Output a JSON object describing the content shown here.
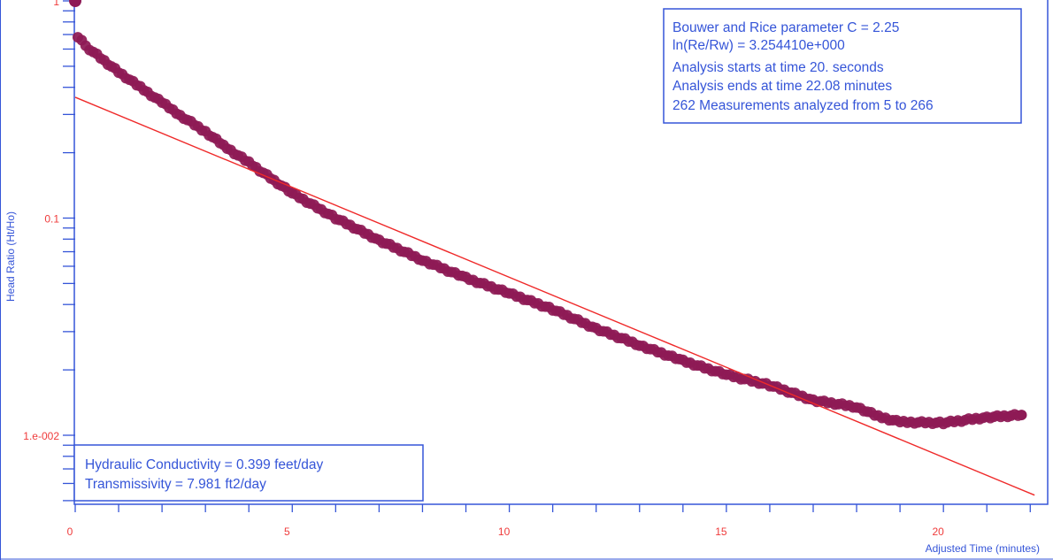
{
  "chart_data": {
    "type": "scatter",
    "xlabel": "Adjusted Time (minutes)",
    "ylabel": "Head Ratio (Ht/Ho)",
    "xlim": [
      0,
      22.3
    ],
    "ylim": [
      0.0045,
      1.0
    ],
    "yscale": "log",
    "grid": false,
    "x_ticks": [
      {
        "value": 0,
        "label": "0"
      },
      {
        "value": 5,
        "label": "5"
      },
      {
        "value": 10,
        "label": "10"
      },
      {
        "value": 15,
        "label": "15"
      },
      {
        "value": 20,
        "label": "20"
      }
    ],
    "y_ticks": [
      {
        "value": 1,
        "label": "1"
      },
      {
        "value": 0.1,
        "label": "0.1"
      },
      {
        "value": 0.01,
        "label": "1.e-002"
      }
    ],
    "colors": {
      "axis": "#3555d8",
      "tick_label": "#ef3b3b",
      "points": "#8e1a55",
      "fit_line": "#ef2a2a",
      "text": "#3555d8"
    },
    "series": [
      {
        "kind": "points",
        "x": [
          0.0,
          0.06,
          0.33,
          0.67,
          1.0,
          1.5,
          2.0,
          2.5,
          3.0,
          3.5,
          4.0,
          5.0,
          6.0,
          7.0,
          8.0,
          9.0,
          10.0,
          11.0,
          12.0,
          13.0,
          14.0,
          15.0,
          16.0,
          17.0,
          18.0,
          18.5,
          19.0,
          20.0,
          21.0,
          21.8
        ],
        "y": [
          1.0,
          0.68,
          0.6,
          0.53,
          0.47,
          0.4,
          0.34,
          0.29,
          0.25,
          0.21,
          0.18,
          0.13,
          0.1,
          0.079,
          0.064,
          0.053,
          0.045,
          0.038,
          0.031,
          0.026,
          0.022,
          0.019,
          0.017,
          0.0145,
          0.0135,
          0.0122,
          0.0115,
          0.0114,
          0.0121,
          0.0124
        ]
      },
      {
        "kind": "fit_line",
        "x": [
          0,
          22.1
        ],
        "y": [
          0.36,
          0.0053
        ]
      }
    ],
    "annotations": {
      "top_box": [
        "Bouwer and Rice parameter C = 2.25",
        "ln(Re/Rw) = 3.254410e+000",
        "Analysis starts at time 20. seconds",
        "Analysis ends at time 22.08 minutes",
        "262 Measurements analyzed from 5 to 266"
      ],
      "bottom_box": [
        "Hydraulic Conductivity = 0.399 feet/day",
        "Transmissivity = 7.981 ft2/day"
      ]
    }
  }
}
